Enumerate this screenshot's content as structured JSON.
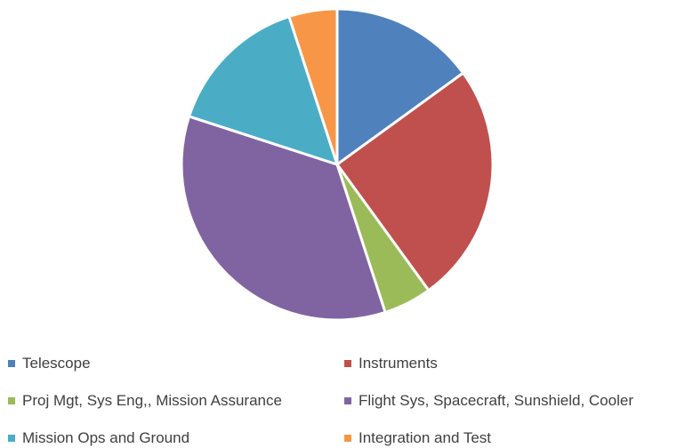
{
  "chart_data": {
    "type": "pie",
    "title": "",
    "start_angle_deg": 0,
    "direction": "clockwise",
    "legend_position": "bottom",
    "series": [
      {
        "name": "Telescope",
        "value": 15,
        "color": "#4F81BD"
      },
      {
        "name": "Instruments",
        "value": 25,
        "color": "#C0504D"
      },
      {
        "name": "Proj Mgt, Sys Eng,, Mission Assurance",
        "value": 5,
        "color": "#9BBB59"
      },
      {
        "name": "Flight Sys, Spacecraft, Sunshield, Cooler",
        "value": 35,
        "color": "#8064A2"
      },
      {
        "name": "Mission Ops and Ground",
        "value": 15,
        "color": "#4BACC6"
      },
      {
        "name": "Integration and Test",
        "value": 5,
        "color": "#F79646"
      }
    ]
  }
}
